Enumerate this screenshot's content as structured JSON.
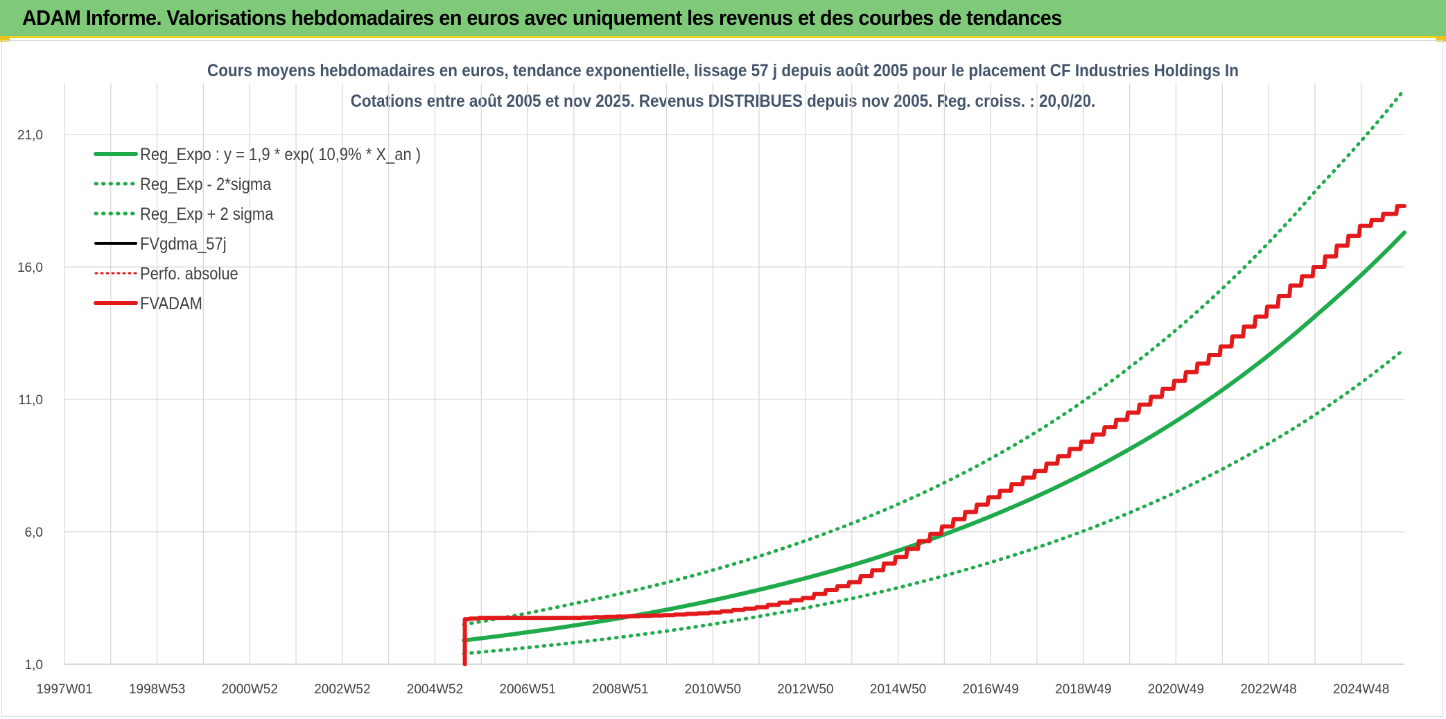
{
  "banner": {
    "title": "ADAM Informe. Valorisations hebdomadaires en euros avec uniquement les revenus et des courbes de tendances"
  },
  "chart_data": {
    "type": "line",
    "title_line1": "Cours moyens hebdomadaires en euros, tendance exponentielle, lissage 57 j depuis août 2005 pour le placement CF Industries Holdings In",
    "title_line2": "Cotations entre août 2005 et nov 2025. Revenus DISTRIBUES depuis nov 2005. Reg. croiss. : 20,0/20.",
    "xlabel": "",
    "ylabel": "",
    "x_ticks": [
      "1997W01",
      "1998W53",
      "2000W52",
      "2002W52",
      "2004W52",
      "2006W51",
      "2008W51",
      "2010W50",
      "2012W50",
      "2014W50",
      "2016W49",
      "2018W49",
      "2020W49",
      "2022W48",
      "2024W48"
    ],
    "x_range": [
      1997.0,
      2025.85
    ],
    "ylim": [
      1.0,
      21.0
    ],
    "y_ticks": [
      "1,0",
      "6,0",
      "11,0",
      "16,0",
      "21,0"
    ],
    "y_tick_values": [
      1,
      6,
      11,
      16,
      21
    ],
    "grid": true,
    "legend_position": "top-left",
    "colors": {
      "green": "#1faa4b",
      "black": "#000000",
      "red": "#e31a1c",
      "grid": "#d9d9d9"
    },
    "series": [
      {
        "name": "Reg_Expo : y = 1,9 * exp( 10,9% *  X_an )",
        "style": "solid-green",
        "x": [
          2005.6,
          2008.0,
          2010.0,
          2012.0,
          2014.0,
          2016.0,
          2018.0,
          2020.0,
          2022.0,
          2024.0,
          2025.85
        ],
        "y": [
          1.9,
          2.47,
          3.07,
          3.83,
          4.76,
          5.94,
          7.39,
          9.19,
          11.44,
          14.25,
          17.3
        ]
      },
      {
        "name": "Reg_Exp - 2*sigma",
        "style": "dotted-green",
        "x": [
          2005.6,
          2008.0,
          2010.0,
          2012.0,
          2014.0,
          2016.0,
          2018.0,
          2020.0,
          2022.0,
          2024.0,
          2025.85
        ],
        "y": [
          1.4,
          1.82,
          2.26,
          2.82,
          3.5,
          4.37,
          5.44,
          6.77,
          8.43,
          10.5,
          12.9
        ]
      },
      {
        "name": "Reg_Exp + 2 sigma",
        "style": "dotted-green",
        "x": [
          2005.6,
          2008.0,
          2010.0,
          2012.0,
          2014.0,
          2016.0,
          2018.0,
          2020.0,
          2022.0,
          2024.0,
          2025.85
        ],
        "y": [
          2.5,
          3.3,
          4.1,
          5.1,
          6.35,
          7.9,
          9.85,
          12.3,
          15.3,
          19.0,
          22.7
        ]
      },
      {
        "name": "FVgdma_57j",
        "style": "solid-black",
        "x": [],
        "y": []
      },
      {
        "name": "Perfo. absolue",
        "style": "dotted-red",
        "x": [],
        "y": []
      },
      {
        "name": "FVADAM",
        "style": "solid-red-stepped",
        "x": [
          2005.62,
          2005.62,
          2005.62,
          2006.0,
          2008.0,
          2010.0,
          2011.0,
          2012.0,
          2013.0,
          2014.0,
          2014.5,
          2015.0,
          2015.5,
          2016.0,
          2016.5,
          2017.0,
          2017.5,
          2018.0,
          2018.5,
          2019.0,
          2019.5,
          2020.0,
          2020.5,
          2021.0,
          2021.5,
          2022.0,
          2022.5,
          2023.0,
          2023.5,
          2024.0,
          2024.5,
          2025.0,
          2025.5,
          2025.85
        ],
        "y": [
          1.0,
          1.6,
          2.7,
          2.75,
          2.75,
          2.85,
          2.95,
          3.15,
          3.5,
          4.1,
          4.55,
          5.05,
          5.65,
          6.2,
          6.75,
          7.3,
          7.8,
          8.3,
          8.85,
          9.4,
          9.95,
          10.5,
          11.1,
          11.7,
          12.35,
          13.0,
          13.75,
          14.5,
          15.3,
          16.0,
          16.8,
          17.55,
          18.0,
          18.3
        ]
      }
    ]
  }
}
